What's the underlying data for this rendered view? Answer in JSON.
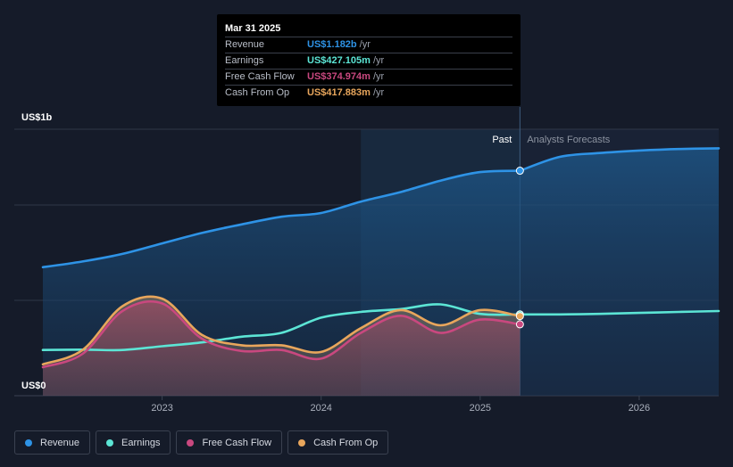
{
  "chart_data": {
    "type": "line",
    "title": "",
    "xlabel": "",
    "ylabel": "",
    "x_range": [
      2022.25,
      2026.5
    ],
    "ylim": [
      0,
      1.4
    ],
    "y_ticks": [
      {
        "value": 0,
        "label": "US$0"
      },
      {
        "value": 1.4,
        "label": "US$1b"
      }
    ],
    "x_ticks": [
      {
        "value": 2023,
        "label": "2023"
      },
      {
        "value": 2024,
        "label": "2024"
      },
      {
        "value": 2025,
        "label": "2025"
      },
      {
        "value": 2026,
        "label": "2026"
      }
    ],
    "forecast_start": 2025.25,
    "highlight_start": 2024.25,
    "past_label": "Past",
    "forecast_label": "Analysts Forecasts",
    "series": [
      {
        "name": "Revenue",
        "color": "#2e93e6",
        "fill": true,
        "x": [
          2022.25,
          2022.5,
          2022.75,
          2023.0,
          2023.25,
          2023.5,
          2023.75,
          2024.0,
          2024.25,
          2024.5,
          2024.75,
          2025.0,
          2025.25
        ],
        "values": [
          0.675,
          0.705,
          0.745,
          0.8,
          0.855,
          0.9,
          0.94,
          0.96,
          1.02,
          1.07,
          1.13,
          1.175,
          1.182
        ],
        "forecast_x": [
          2025.25,
          2025.5,
          2025.75,
          2026.0,
          2026.25,
          2026.5
        ],
        "forecast_values": [
          1.182,
          1.255,
          1.275,
          1.288,
          1.296,
          1.3
        ]
      },
      {
        "name": "Earnings",
        "color": "#5ce5d5",
        "fill": false,
        "x": [
          2022.25,
          2022.5,
          2022.75,
          2023.0,
          2023.25,
          2023.5,
          2023.75,
          2024.0,
          2024.25,
          2024.5,
          2024.75,
          2025.0,
          2025.25
        ],
        "values": [
          0.24,
          0.242,
          0.24,
          0.26,
          0.28,
          0.31,
          0.33,
          0.41,
          0.44,
          0.455,
          0.48,
          0.43,
          0.427
        ],
        "forecast_x": [
          2025.25,
          2025.5,
          2025.75,
          2026.0,
          2026.25,
          2026.5
        ],
        "forecast_values": [
          0.427,
          0.427,
          0.43,
          0.435,
          0.44,
          0.445
        ]
      },
      {
        "name": "Free Cash Flow",
        "color": "#c9487f",
        "fill": true,
        "x": [
          2022.25,
          2022.5,
          2022.75,
          2023.0,
          2023.25,
          2023.5,
          2023.75,
          2024.0,
          2024.25,
          2024.5,
          2024.75,
          2025.0,
          2025.25
        ],
        "values": [
          0.15,
          0.22,
          0.445,
          0.485,
          0.3,
          0.235,
          0.24,
          0.195,
          0.33,
          0.42,
          0.33,
          0.4,
          0.375
        ]
      },
      {
        "name": "Cash From Op",
        "color": "#e8a65c",
        "fill": true,
        "x": [
          2022.25,
          2022.5,
          2022.75,
          2023.0,
          2023.25,
          2023.5,
          2023.75,
          2024.0,
          2024.25,
          2024.5,
          2024.75,
          2025.0,
          2025.25
        ],
        "values": [
          0.165,
          0.24,
          0.47,
          0.51,
          0.32,
          0.265,
          0.265,
          0.23,
          0.355,
          0.45,
          0.37,
          0.45,
          0.418
        ]
      }
    ]
  },
  "tooltip": {
    "date": "Mar 31 2025",
    "rows": [
      {
        "label": "Revenue",
        "value": "US$1.182b",
        "unit": "/yr",
        "color": "#2e93e6"
      },
      {
        "label": "Earnings",
        "value": "US$427.105m",
        "unit": "/yr",
        "color": "#5ce5d5"
      },
      {
        "label": "Free Cash Flow",
        "value": "US$374.974m",
        "unit": "/yr",
        "color": "#c9487f"
      },
      {
        "label": "Cash From Op",
        "value": "US$417.883m",
        "unit": "/yr",
        "color": "#e8a65c"
      }
    ]
  },
  "legend": [
    {
      "label": "Revenue",
      "color": "#2e93e6"
    },
    {
      "label": "Earnings",
      "color": "#5ce5d5"
    },
    {
      "label": "Free Cash Flow",
      "color": "#c9487f"
    },
    {
      "label": "Cash From Op",
      "color": "#e8a65c"
    }
  ]
}
